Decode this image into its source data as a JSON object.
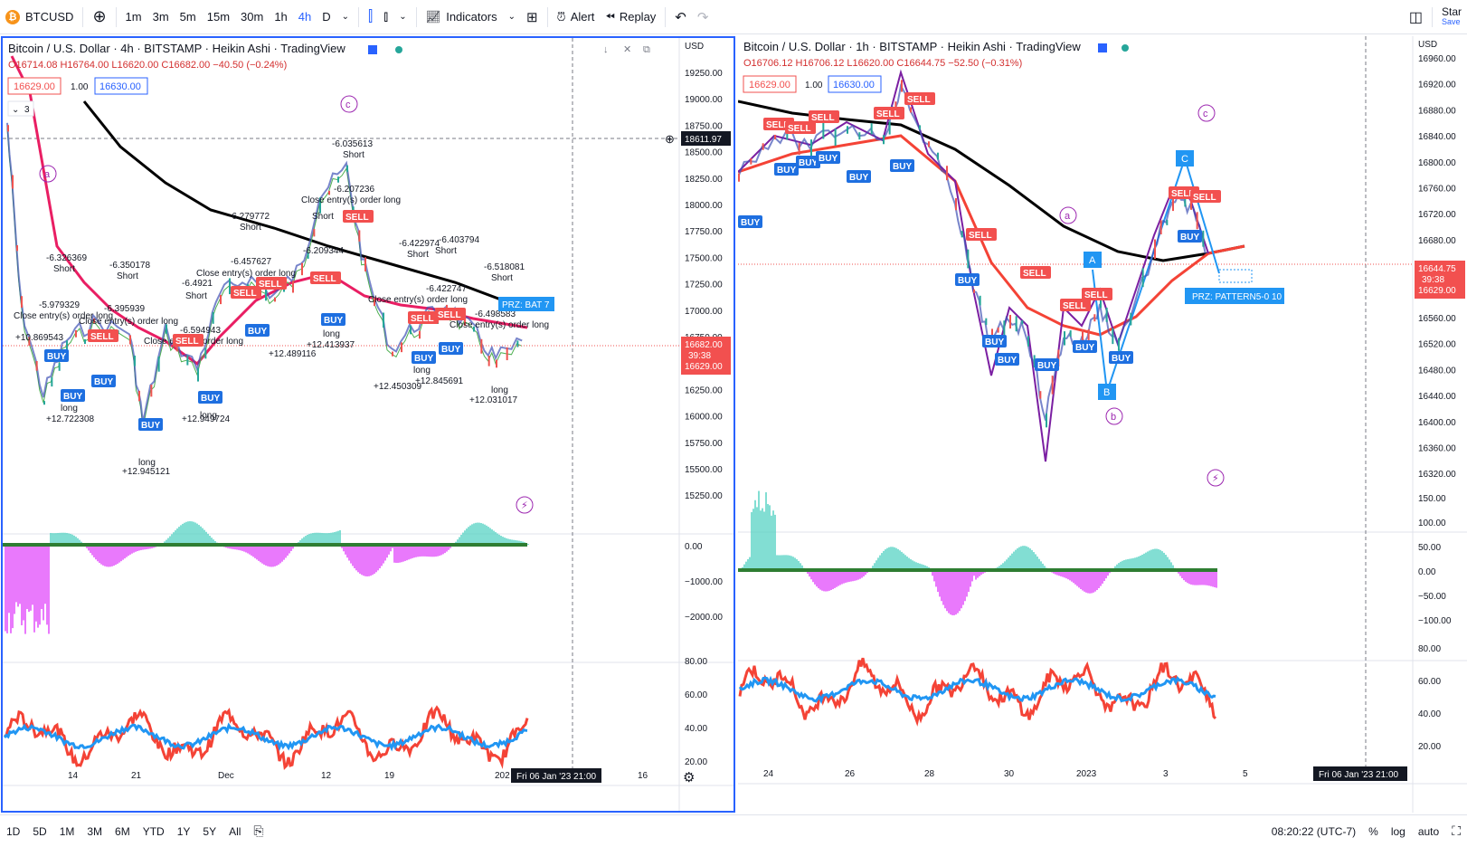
{
  "toolbar": {
    "symbol": "BTCUSD",
    "timeframes": [
      "1m",
      "3m",
      "5m",
      "15m",
      "30m",
      "1h",
      "4h",
      "D"
    ],
    "active_timeframe": "4h",
    "indicators_label": "Indicators",
    "alert_label": "Alert",
    "replay_label": "Replay",
    "right_label": "Star",
    "right_sub": "Save"
  },
  "left_chart": {
    "title": "Bitcoin / U.S. Dollar · 4h · BITSTAMP · Heikin Ashi · TradingView",
    "ohlc": "O16714.08 H16764.00 L16620.00 C16682.00 −40.50 (−0.24%)",
    "bid": "16629.00",
    "qty": "1.00",
    "ask": "16630.00",
    "collapse_count": "3",
    "currency": "USD",
    "price_ticks": [
      "19250.00",
      "19000.00",
      "18750.00",
      "18500.00",
      "18250.00",
      "18000.00",
      "17750.00",
      "17500.00",
      "17250.00",
      "17000.00",
      "16750.00",
      "16500.00",
      "16250.00",
      "16000.00",
      "15750.00",
      "15500.00",
      "15250.00"
    ],
    "crosshair_price": "18611.97",
    "last_price": "16682.00",
    "countdown": "39:38",
    "bid_price_tag": "16629.00",
    "osc_ticks": [
      "0.00",
      "−1000.00",
      "−2000.00"
    ],
    "rsi_ticks": [
      "80.00",
      "60.00",
      "40.00",
      "20.00"
    ],
    "time_ticks": [
      "14",
      "21",
      "Dec",
      "12",
      "19",
      "202",
      "16"
    ],
    "time_cursor": "Fri 06 Jan '23  21:00",
    "wave_labels": [
      "a",
      "c"
    ],
    "annotations": [
      "-6.326369",
      "Short",
      "-6.350178",
      "Short",
      "-6.4921",
      "Short",
      "-6.279772",
      "Short",
      "-6.035613",
      "Short",
      "-6.207236",
      "Close entry(s) order long",
      "-6.209344",
      "Short",
      "-6.457627",
      "Close entry(s) order long",
      "-6.422974",
      "Short",
      "-6.403794",
      "Short",
      "-6.518081",
      "Short",
      "-6.422747",
      "-6.498583",
      "-5.979329",
      "Close entry(s) order long",
      "-6.395939",
      "Close entry(s) order long",
      "-6.594943",
      "Close entry(s) order long",
      "Close entry(s) order long",
      "Close entry(s) order long",
      "+10.869543",
      "+12.722308",
      "+12.945121",
      "+12.949724",
      "+12.489116",
      "+12.413937",
      "+12.450309",
      "+12.845691",
      "+12.031017",
      "PRZ: BAT 7",
      "long"
    ]
  },
  "right_chart": {
    "title": "Bitcoin / U.S. Dollar · 1h · BITSTAMP · Heikin Ashi · TradingView",
    "ohlc": "O16706.12 H16706.12 L16620.00 C16644.75 −52.50 (−0.31%)",
    "bid": "16629.00",
    "qty": "1.00",
    "ask": "16630.00",
    "currency": "USD",
    "price_ticks": [
      "16960.00",
      "16920.00",
      "16880.00",
      "16840.00",
      "16800.00",
      "16760.00",
      "16720.00",
      "16680.00",
      "16640.00",
      "16600.00",
      "16560.00",
      "16520.00",
      "16480.00",
      "16440.00",
      "16400.00",
      "16360.00",
      "16320.00"
    ],
    "last_price": "16644.75",
    "countdown": "39:38",
    "bid_price_tag": "16629.00",
    "osc_ticks": [
      "150.00",
      "100.00",
      "50.00",
      "0.00",
      "−50.00",
      "−100.00"
    ],
    "rsi_ticks": [
      "80.00",
      "60.00",
      "40.00",
      "20.00"
    ],
    "time_ticks": [
      "24",
      "26",
      "28",
      "30",
      "2023",
      "3",
      "5"
    ],
    "time_cursor": "Fri 06 Jan '23  21:00",
    "prz_label": "PRZ: PATTERN5-0 10",
    "pattern_points": [
      "A",
      "B",
      "C"
    ],
    "wave_labels": [
      "a",
      "b",
      "c"
    ]
  },
  "bottombar": {
    "ranges": [
      "1D",
      "5D",
      "1M",
      "3M",
      "6M",
      "YTD",
      "1Y",
      "5Y",
      "All"
    ],
    "clock": "08:20:22 (UTC-7)",
    "percent": "%",
    "log": "log",
    "auto": "auto"
  },
  "colors": {
    "accent": "#2962ff",
    "buy": "#1e6fe0",
    "sell": "#f2504f",
    "ema_black": "#000000",
    "ema_red": "#e53935"
  }
}
